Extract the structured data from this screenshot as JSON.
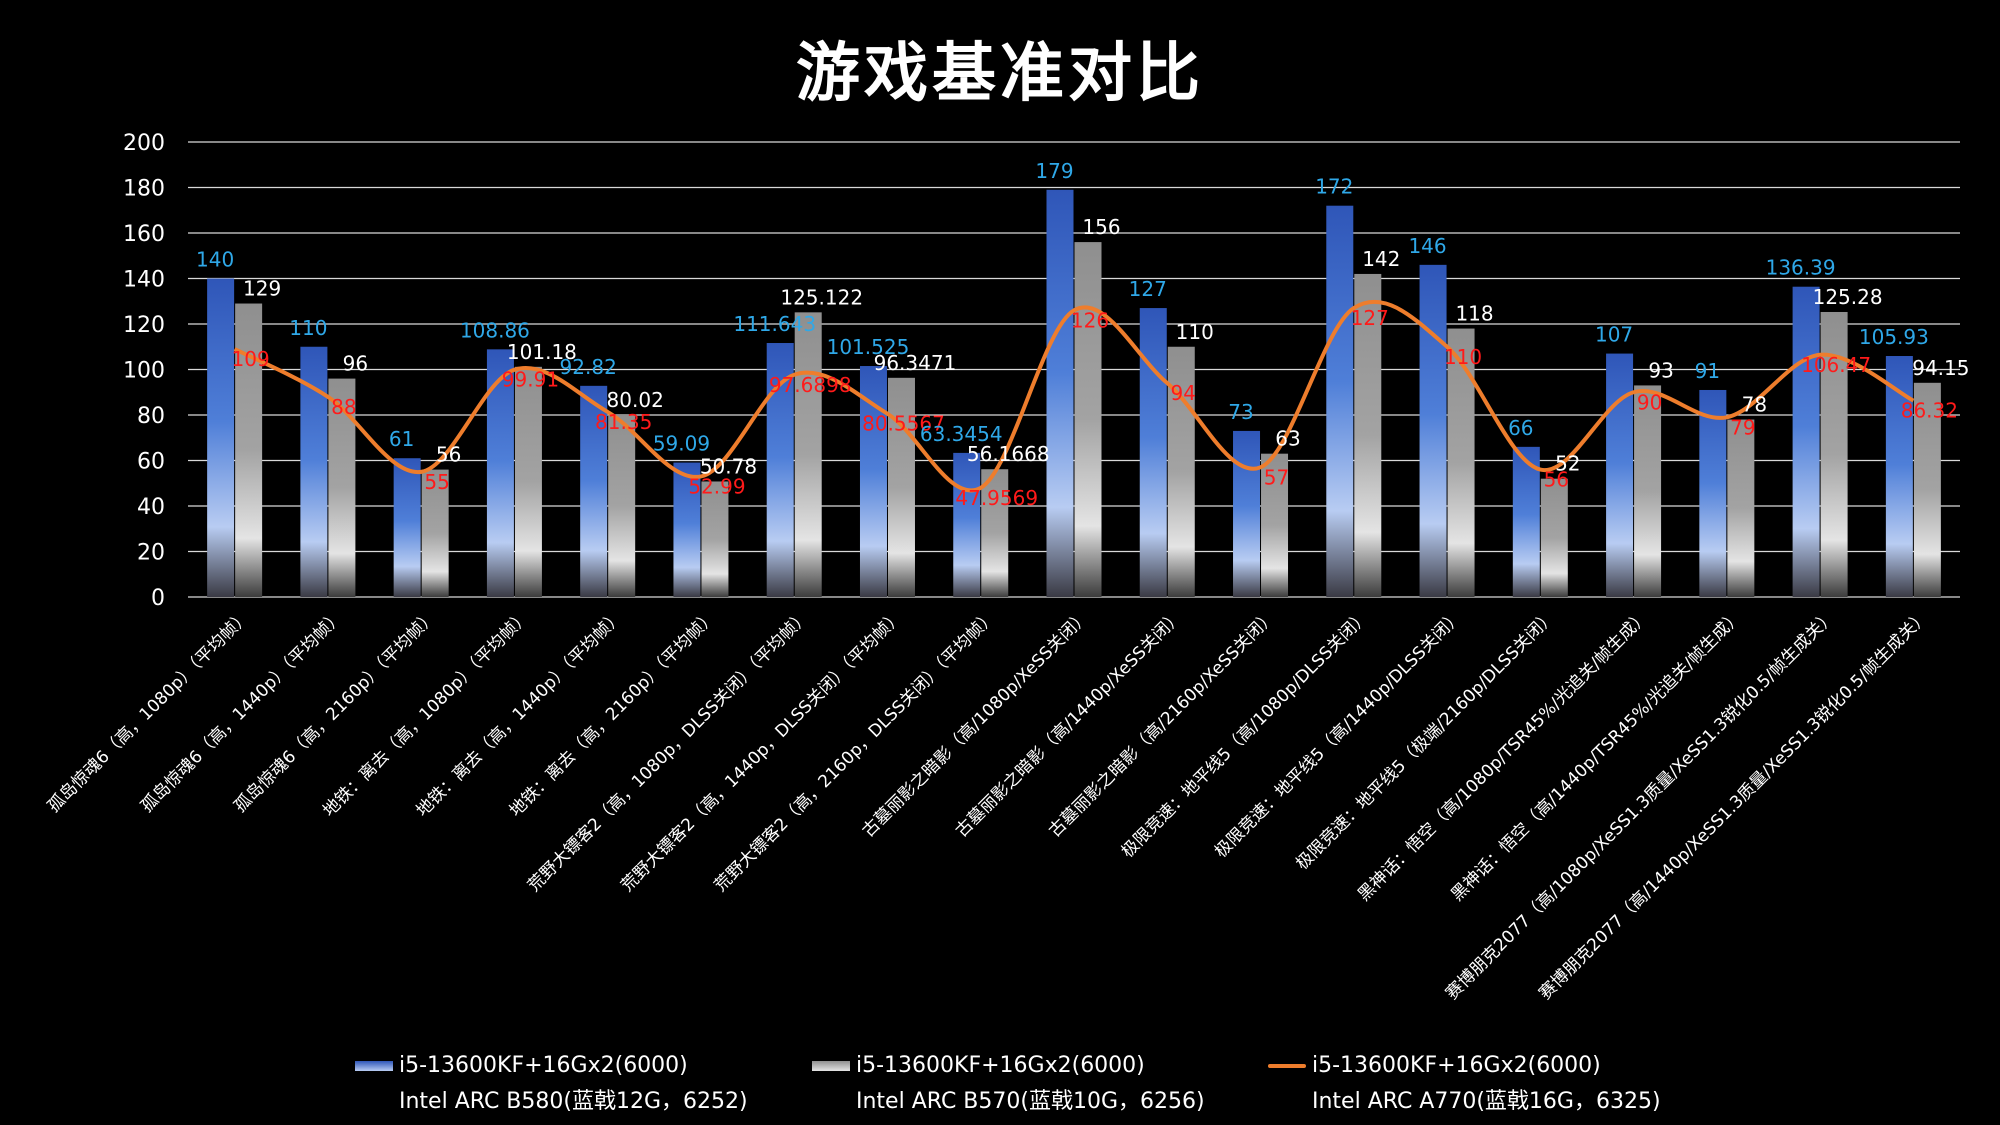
{
  "chart_data": {
    "type": "bar",
    "title": "游戏基准对比",
    "ylim": [
      0,
      200
    ],
    "yticks": [
      "0",
      "20",
      "40",
      "60",
      "80",
      "100",
      "120",
      "140",
      "160",
      "180",
      "200"
    ],
    "grid": true,
    "legend_position": "bottom",
    "categories": [
      "孤岛惊魂6（高，1080p）（平均帧）",
      "孤岛惊魂6（高，1440p）（平均帧）",
      "孤岛惊魂6（高，2160p）（平均帧）",
      "地铁：离去（高，1080p）（平均帧）",
      "地铁：离去（高，1440p）（平均帧）",
      "地铁：离去（高，2160p）（平均帧）",
      "荒野大镖客2（高，1080p，DLSS关闭）（平均帧）",
      "荒野大镖客2（高，1440p，DLSS关闭）（平均帧）",
      "荒野大镖客2（高，2160p，DLSS关闭）（平均帧）",
      "古墓丽影之暗影（高/1080p/XeSS关闭）",
      "古墓丽影之暗影（高/1440p/XeSS关闭）",
      "古墓丽影之暗影（高/2160p/XeSS关闭）",
      "极限竞速：地平线5（高/1080p/DLSS关闭）",
      "极限竞速：地平线5（高/1440p/DLSS关闭）",
      "极限竞速：地平线5（极端/2160p/DLSS关闭）",
      "黑神话：悟空（高/1080p/TSR45%/光追关/帧生成）",
      "黑神话：悟空（高/1440p/TSR45%/光追关/帧生成）",
      "赛博朋克2077（高/1080p/XeSS1.3质量/XeSS1.3锐化0.5/帧生成关）",
      "赛博朋克2077（高/1440p/XeSS1.3质量/XeSS1.3锐化0.5/帧生成关）"
    ],
    "series": [
      {
        "name_line1": "i5-13600KF+16Gx2(6000)",
        "name_line2": "Intel ARC B580(蓝戟12G，6252)",
        "kind": "bar",
        "color": "#3f6fd1",
        "label_color": "#2fa8e8",
        "values": [
          140,
          110,
          61,
          108.86,
          92.82,
          59.09,
          111.643,
          101.525,
          63.3454,
          179,
          127,
          73,
          172,
          146,
          66,
          107,
          91,
          136.39,
          105.93
        ],
        "labels": [
          "140",
          "110",
          "61",
          "108.86",
          "92.82",
          "59.09",
          "111.643",
          "101.525",
          "63.3454",
          "179",
          "127",
          "73",
          "172",
          "146",
          "66",
          "107",
          "91",
          "136.39",
          "105.93"
        ]
      },
      {
        "name_line1": "i5-13600KF+16Gx2(6000)",
        "name_line2": "Intel ARC B570(蓝戟10G，6256)",
        "kind": "bar",
        "color": "#a8a8a8",
        "label_color": "#ffffff",
        "values": [
          129,
          96,
          56,
          101.18,
          80.02,
          50.78,
          125.122,
          96.3471,
          56.1668,
          156,
          110,
          63,
          142,
          118,
          52,
          93,
          78,
          125.28,
          94.15
        ],
        "labels": [
          "129",
          "96",
          "56",
          "101.18",
          "80.02",
          "50.78",
          "125.122",
          "96.3471",
          "56.1668",
          "156",
          "110",
          "63",
          "142",
          "118",
          "52",
          "93",
          "78",
          "125.28",
          "94.15"
        ]
      },
      {
        "name_line1": "i5-13600KF+16Gx2(6000)",
        "name_line2": "Intel ARC A770(蓝戟16G，6325)",
        "kind": "line",
        "color": "#ee7d2c",
        "label_color": "#ff1a1a",
        "values": [
          109,
          88,
          55,
          99.91,
          81.35,
          52.99,
          97.6898,
          80.5567,
          47.9569,
          126,
          94,
          57,
          127,
          110,
          56,
          90,
          79,
          106.47,
          86.32
        ],
        "labels": [
          "109",
          "88",
          "55",
          "99.91",
          "81.35",
          "52.99",
          "97.6898",
          "80.5567",
          "47.9569",
          "126",
          "94",
          "57",
          "127",
          "110",
          "56",
          "90",
          "79",
          "106.47",
          "86.32"
        ]
      }
    ]
  }
}
